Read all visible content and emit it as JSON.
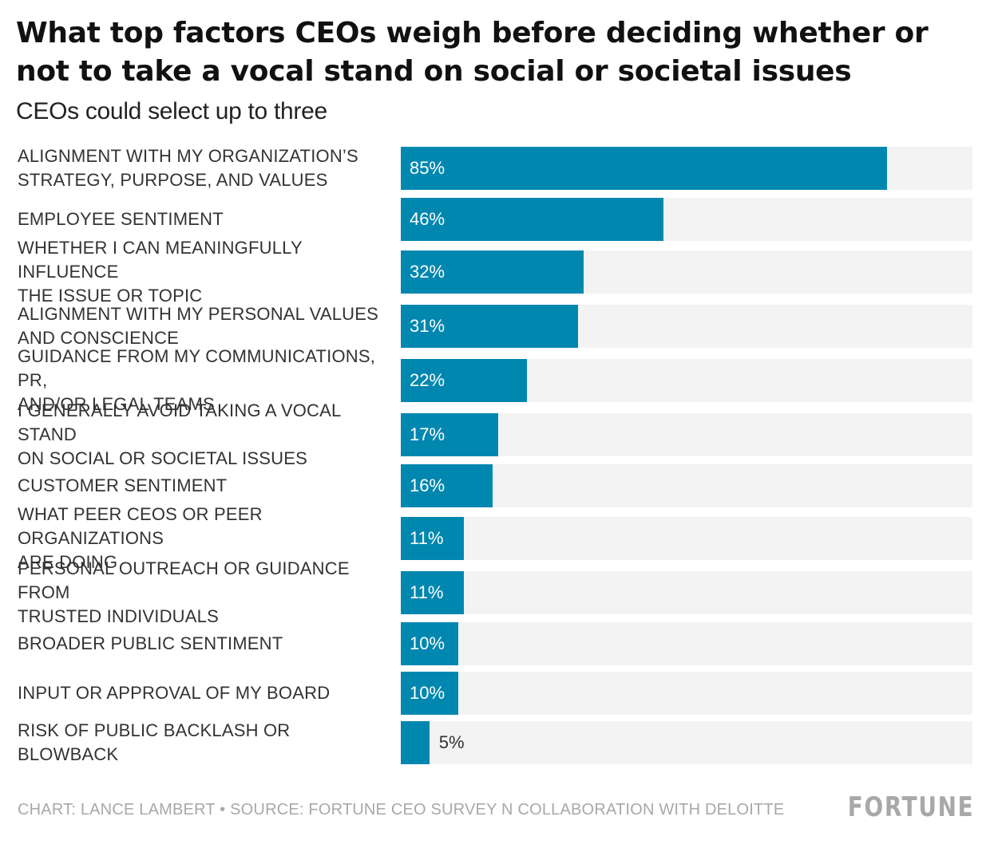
{
  "chart_data": {
    "type": "bar",
    "orientation": "horizontal",
    "title": "What top factors CEOs weigh before deciding whether or not to take a vocal stand on social or societal issues",
    "subtitle": "CEOs could select up to three",
    "categories": [
      "ALIGNMENT WITH MY ORGANIZATION’S STRATEGY, PURPOSE, AND VALUES",
      "EMPLOYEE SENTIMENT",
      "WHETHER I CAN MEANINGFULLY INFLUENCE THE ISSUE OR TOPIC",
      "ALIGNMENT WITH MY PERSONAL VALUES AND CONSCIENCE",
      "GUIDANCE FROM MY COMMUNICATIONS, PR, AND/OR LEGAL TEAMS",
      "I GENERALLY AVOID TAKING A VOCAL STAND ON SOCIAL OR SOCIETAL ISSUES",
      "CUSTOMER SENTIMENT",
      "WHAT PEER CEOS OR PEER ORGANIZATIONS ARE DOING",
      "PERSONAL OUTREACH OR GUIDANCE FROM TRUSTED INDIVIDUALS",
      "BROADER PUBLIC SENTIMENT",
      "INPUT OR APPROVAL OF MY BOARD",
      "RISK OF PUBLIC BACKLASH OR BLOWBACK"
    ],
    "label_lines": [
      [
        "ALIGNMENT WITH MY ORGANIZATION’S",
        "STRATEGY, PURPOSE, AND VALUES"
      ],
      [
        "EMPLOYEE SENTIMENT"
      ],
      [
        "WHETHER I CAN MEANINGFULLY INFLUENCE",
        "THE ISSUE OR TOPIC"
      ],
      [
        "ALIGNMENT WITH MY PERSONAL VALUES",
        "AND CONSCIENCE"
      ],
      [
        "GUIDANCE FROM MY COMMUNICATIONS, PR,",
        "AND/OR LEGAL TEAMS"
      ],
      [
        "I GENERALLY AVOID TAKING A VOCAL STAND",
        "ON SOCIAL OR SOCIETAL ISSUES"
      ],
      [
        "CUSTOMER SENTIMENT"
      ],
      [
        "WHAT PEER CEOS OR PEER ORGANIZATIONS",
        "ARE DOING"
      ],
      [
        "PERSONAL OUTREACH OR GUIDANCE FROM",
        "TRUSTED INDIVIDUALS"
      ],
      [
        "BROADER PUBLIC SENTIMENT"
      ],
      [
        "INPUT OR APPROVAL OF MY BOARD"
      ],
      [
        "RISK OF PUBLIC BACKLASH OR BLOWBACK"
      ]
    ],
    "values": [
      85,
      46,
      32,
      31,
      22,
      17,
      16,
      11,
      11,
      10,
      10,
      5
    ],
    "value_labels": [
      "85%",
      "46%",
      "32%",
      "31%",
      "22%",
      "17%",
      "16%",
      "11%",
      "11%",
      "10%",
      "10%",
      "5%"
    ],
    "unit": "%",
    "xlim": [
      0,
      100
    ],
    "grid": false,
    "legend": "none",
    "colors": {
      "bar": "#0087b0",
      "track": "#f3f3f3",
      "label_inside": "#ffffff",
      "label_outside": "#333333"
    }
  },
  "footer": {
    "credit": "CHART: LANCE LAMBERT • SOURCE: FORTUNE CEO SURVEY N COLLABORATION WITH DELOITTE",
    "logo_text": "FORTUNE"
  }
}
